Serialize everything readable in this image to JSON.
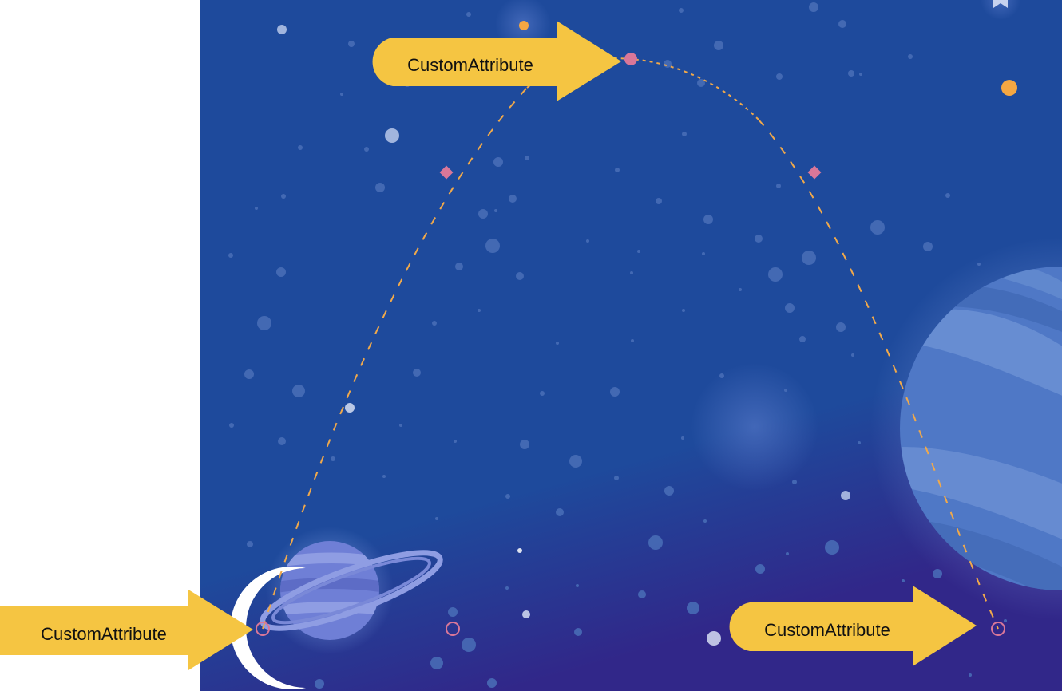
{
  "callouts": [
    {
      "id": "callout-top",
      "label": "CustomAttribute"
    },
    {
      "id": "callout-bottom-left",
      "label": "CustomAttribute"
    },
    {
      "id": "callout-bottom-right",
      "label": "CustomAttribute"
    }
  ],
  "colors": {
    "space_top": "#1e4a9c",
    "space_bottom_left": "#312789",
    "callout_fill": "#f5c542",
    "path_stroke": "#f1a94a",
    "keyframe_marker": "#d97799",
    "moon": "#ffffff",
    "planet_saturn": "#6f7fd6",
    "planet_right": "#4f78c6"
  },
  "icons": [
    "moon-icon",
    "saturn-planet-icon",
    "striped-planet-icon",
    "star-icon"
  ]
}
